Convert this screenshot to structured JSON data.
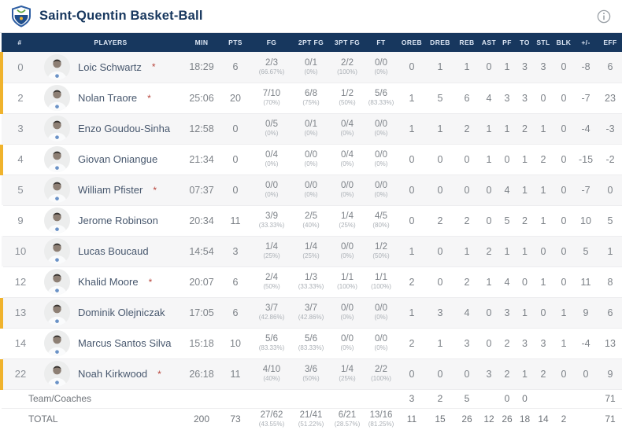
{
  "header": {
    "team_name": "Saint-Quentin Basket-Ball",
    "logo_icon": "team-shield-logo",
    "info_icon": "info-circle-icon"
  },
  "colors": {
    "table_header_bg": "#17375E",
    "on_court_marker": "#F0B32D",
    "row_alt_bg": "#F6F6F7",
    "title_navy": "#17375E"
  },
  "table": {
    "columns": [
      "#",
      "PLAYERS",
      "MIN",
      "PTS",
      "FG",
      "2PT FG",
      "3PT FG",
      "FT",
      "OREB",
      "DREB",
      "REB",
      "AST",
      "PF",
      "TO",
      "STL",
      "BLK",
      "+/-",
      "EFF"
    ],
    "starter_marker": "*",
    "players": [
      {
        "number": "0",
        "name": "Loic Schwartz",
        "starter": true,
        "on_court": true,
        "min": "18:29",
        "pts": "6",
        "fg": "2/3",
        "fg_pct": "(66.67%)",
        "fg2": "0/1",
        "fg2_pct": "(0%)",
        "fg3": "2/2",
        "fg3_pct": "(100%)",
        "ft": "0/0",
        "ft_pct": "(0%)",
        "oreb": "0",
        "dreb": "1",
        "reb": "1",
        "ast": "0",
        "pf": "1",
        "to": "3",
        "stl": "3",
        "blk": "0",
        "pm": "-8",
        "eff": "6"
      },
      {
        "number": "2",
        "name": "Nolan Traore",
        "starter": true,
        "on_court": true,
        "min": "25:06",
        "pts": "20",
        "fg": "7/10",
        "fg_pct": "(70%)",
        "fg2": "6/8",
        "fg2_pct": "(75%)",
        "fg3": "1/2",
        "fg3_pct": "(50%)",
        "ft": "5/6",
        "ft_pct": "(83.33%)",
        "oreb": "1",
        "dreb": "5",
        "reb": "6",
        "ast": "4",
        "pf": "3",
        "to": "3",
        "stl": "0",
        "blk": "0",
        "pm": "-7",
        "eff": "23"
      },
      {
        "number": "3",
        "name": "Enzo Goudou-Sinha",
        "starter": false,
        "on_court": false,
        "min": "12:58",
        "pts": "0",
        "fg": "0/5",
        "fg_pct": "(0%)",
        "fg2": "0/1",
        "fg2_pct": "(0%)",
        "fg3": "0/4",
        "fg3_pct": "(0%)",
        "ft": "0/0",
        "ft_pct": "(0%)",
        "oreb": "1",
        "dreb": "1",
        "reb": "2",
        "ast": "1",
        "pf": "1",
        "to": "2",
        "stl": "1",
        "blk": "0",
        "pm": "-4",
        "eff": "-3"
      },
      {
        "number": "4",
        "name": "Giovan Oniangue",
        "starter": false,
        "on_court": true,
        "min": "21:34",
        "pts": "0",
        "fg": "0/4",
        "fg_pct": "(0%)",
        "fg2": "0/0",
        "fg2_pct": "(0%)",
        "fg3": "0/4",
        "fg3_pct": "(0%)",
        "ft": "0/0",
        "ft_pct": "(0%)",
        "oreb": "0",
        "dreb": "0",
        "reb": "0",
        "ast": "1",
        "pf": "0",
        "to": "1",
        "stl": "2",
        "blk": "0",
        "pm": "-15",
        "eff": "-2"
      },
      {
        "number": "5",
        "name": "William Pfister",
        "starter": true,
        "on_court": false,
        "min": "07:37",
        "pts": "0",
        "fg": "0/0",
        "fg_pct": "(0%)",
        "fg2": "0/0",
        "fg2_pct": "(0%)",
        "fg3": "0/0",
        "fg3_pct": "(0%)",
        "ft": "0/0",
        "ft_pct": "(0%)",
        "oreb": "0",
        "dreb": "0",
        "reb": "0",
        "ast": "0",
        "pf": "4",
        "to": "1",
        "stl": "1",
        "blk": "0",
        "pm": "-7",
        "eff": "0"
      },
      {
        "number": "9",
        "name": "Jerome Robinson",
        "starter": false,
        "on_court": false,
        "min": "20:34",
        "pts": "11",
        "fg": "3/9",
        "fg_pct": "(33.33%)",
        "fg2": "2/5",
        "fg2_pct": "(40%)",
        "fg3": "1/4",
        "fg3_pct": "(25%)",
        "ft": "4/5",
        "ft_pct": "(80%)",
        "oreb": "0",
        "dreb": "2",
        "reb": "2",
        "ast": "0",
        "pf": "5",
        "to": "2",
        "stl": "1",
        "blk": "0",
        "pm": "10",
        "eff": "5"
      },
      {
        "number": "10",
        "name": "Lucas Boucaud",
        "starter": false,
        "on_court": false,
        "min": "14:54",
        "pts": "3",
        "fg": "1/4",
        "fg_pct": "(25%)",
        "fg2": "1/4",
        "fg2_pct": "(25%)",
        "fg3": "0/0",
        "fg3_pct": "(0%)",
        "ft": "1/2",
        "ft_pct": "(50%)",
        "oreb": "1",
        "dreb": "0",
        "reb": "1",
        "ast": "2",
        "pf": "1",
        "to": "1",
        "stl": "0",
        "blk": "0",
        "pm": "5",
        "eff": "1"
      },
      {
        "number": "12",
        "name": "Khalid Moore",
        "starter": true,
        "on_court": false,
        "min": "20:07",
        "pts": "6",
        "fg": "2/4",
        "fg_pct": "(50%)",
        "fg2": "1/3",
        "fg2_pct": "(33.33%)",
        "fg3": "1/1",
        "fg3_pct": "(100%)",
        "ft": "1/1",
        "ft_pct": "(100%)",
        "oreb": "2",
        "dreb": "0",
        "reb": "2",
        "ast": "1",
        "pf": "4",
        "to": "0",
        "stl": "1",
        "blk": "0",
        "pm": "11",
        "eff": "8"
      },
      {
        "number": "13",
        "name": "Dominik Olejniczak",
        "starter": false,
        "on_court": true,
        "min": "17:05",
        "pts": "6",
        "fg": "3/7",
        "fg_pct": "(42.86%)",
        "fg2": "3/7",
        "fg2_pct": "(42.86%)",
        "fg3": "0/0",
        "fg3_pct": "(0%)",
        "ft": "0/0",
        "ft_pct": "(0%)",
        "oreb": "1",
        "dreb": "3",
        "reb": "4",
        "ast": "0",
        "pf": "3",
        "to": "1",
        "stl": "0",
        "blk": "1",
        "pm": "9",
        "eff": "6"
      },
      {
        "number": "14",
        "name": "Marcus Santos Silva",
        "starter": false,
        "on_court": false,
        "min": "15:18",
        "pts": "10",
        "fg": "5/6",
        "fg_pct": "(83.33%)",
        "fg2": "5/6",
        "fg2_pct": "(83.33%)",
        "fg3": "0/0",
        "fg3_pct": "(0%)",
        "ft": "0/0",
        "ft_pct": "(0%)",
        "oreb": "2",
        "dreb": "1",
        "reb": "3",
        "ast": "0",
        "pf": "2",
        "to": "3",
        "stl": "3",
        "blk": "1",
        "pm": "-4",
        "eff": "13"
      },
      {
        "number": "22",
        "name": "Noah Kirkwood",
        "starter": true,
        "on_court": true,
        "min": "26:18",
        "pts": "11",
        "fg": "4/10",
        "fg_pct": "(40%)",
        "fg2": "3/6",
        "fg2_pct": "(50%)",
        "fg3": "1/4",
        "fg3_pct": "(25%)",
        "ft": "2/2",
        "ft_pct": "(100%)",
        "oreb": "0",
        "dreb": "0",
        "reb": "0",
        "ast": "3",
        "pf": "2",
        "to": "1",
        "stl": "2",
        "blk": "0",
        "pm": "0",
        "eff": "9"
      }
    ],
    "team_row": {
      "label": "Team/Coaches",
      "oreb": "3",
      "dreb": "2",
      "reb": "5",
      "pf": "0",
      "to": "0",
      "eff": "71"
    },
    "total_row": {
      "label": "TOTAL",
      "min": "200",
      "pts": "73",
      "fg": "27/62",
      "fg_pct": "(43.55%)",
      "fg2": "21/41",
      "fg2_pct": "(51.22%)",
      "fg3": "6/21",
      "fg3_pct": "(28.57%)",
      "ft": "13/16",
      "ft_pct": "(81.25%)",
      "oreb": "11",
      "dreb": "15",
      "reb": "26",
      "ast": "12",
      "pf": "26",
      "to": "18",
      "stl": "14",
      "blk": "2",
      "pm": "",
      "eff": "71"
    }
  }
}
